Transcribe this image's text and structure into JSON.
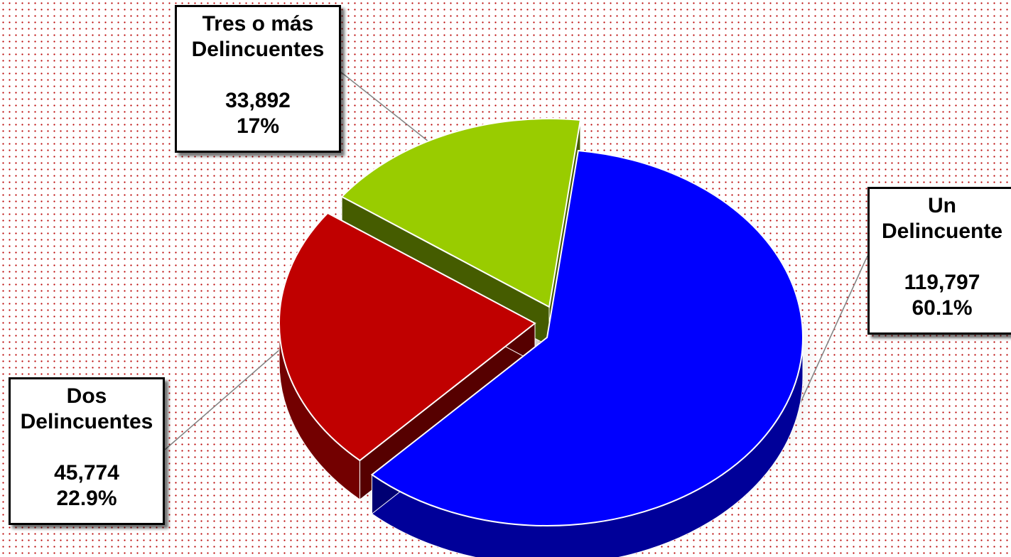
{
  "chart_data": {
    "type": "pie",
    "style": "3d-exploded",
    "title": "",
    "slices": [
      {
        "label": "Un Delincuente",
        "label_lines": [
          "Un",
          "Delincuente"
        ],
        "value": 119797,
        "value_text": "119,797",
        "percent": 60.1,
        "percent_text": "60.1%",
        "color": "#0000FF"
      },
      {
        "label": "Dos Delincuentes",
        "label_lines": [
          "Dos",
          "Delincuentes"
        ],
        "value": 45774,
        "value_text": "45,774",
        "percent": 22.9,
        "percent_text": "22.9%",
        "color": "#C00000"
      },
      {
        "label": "Tres o más Delincuentes",
        "label_lines": [
          "Tres o más",
          "Delincuentes"
        ],
        "value": 33892,
        "value_text": "33,892",
        "percent": 17,
        "percent_text": "17%",
        "color": "#99CC00"
      }
    ]
  }
}
